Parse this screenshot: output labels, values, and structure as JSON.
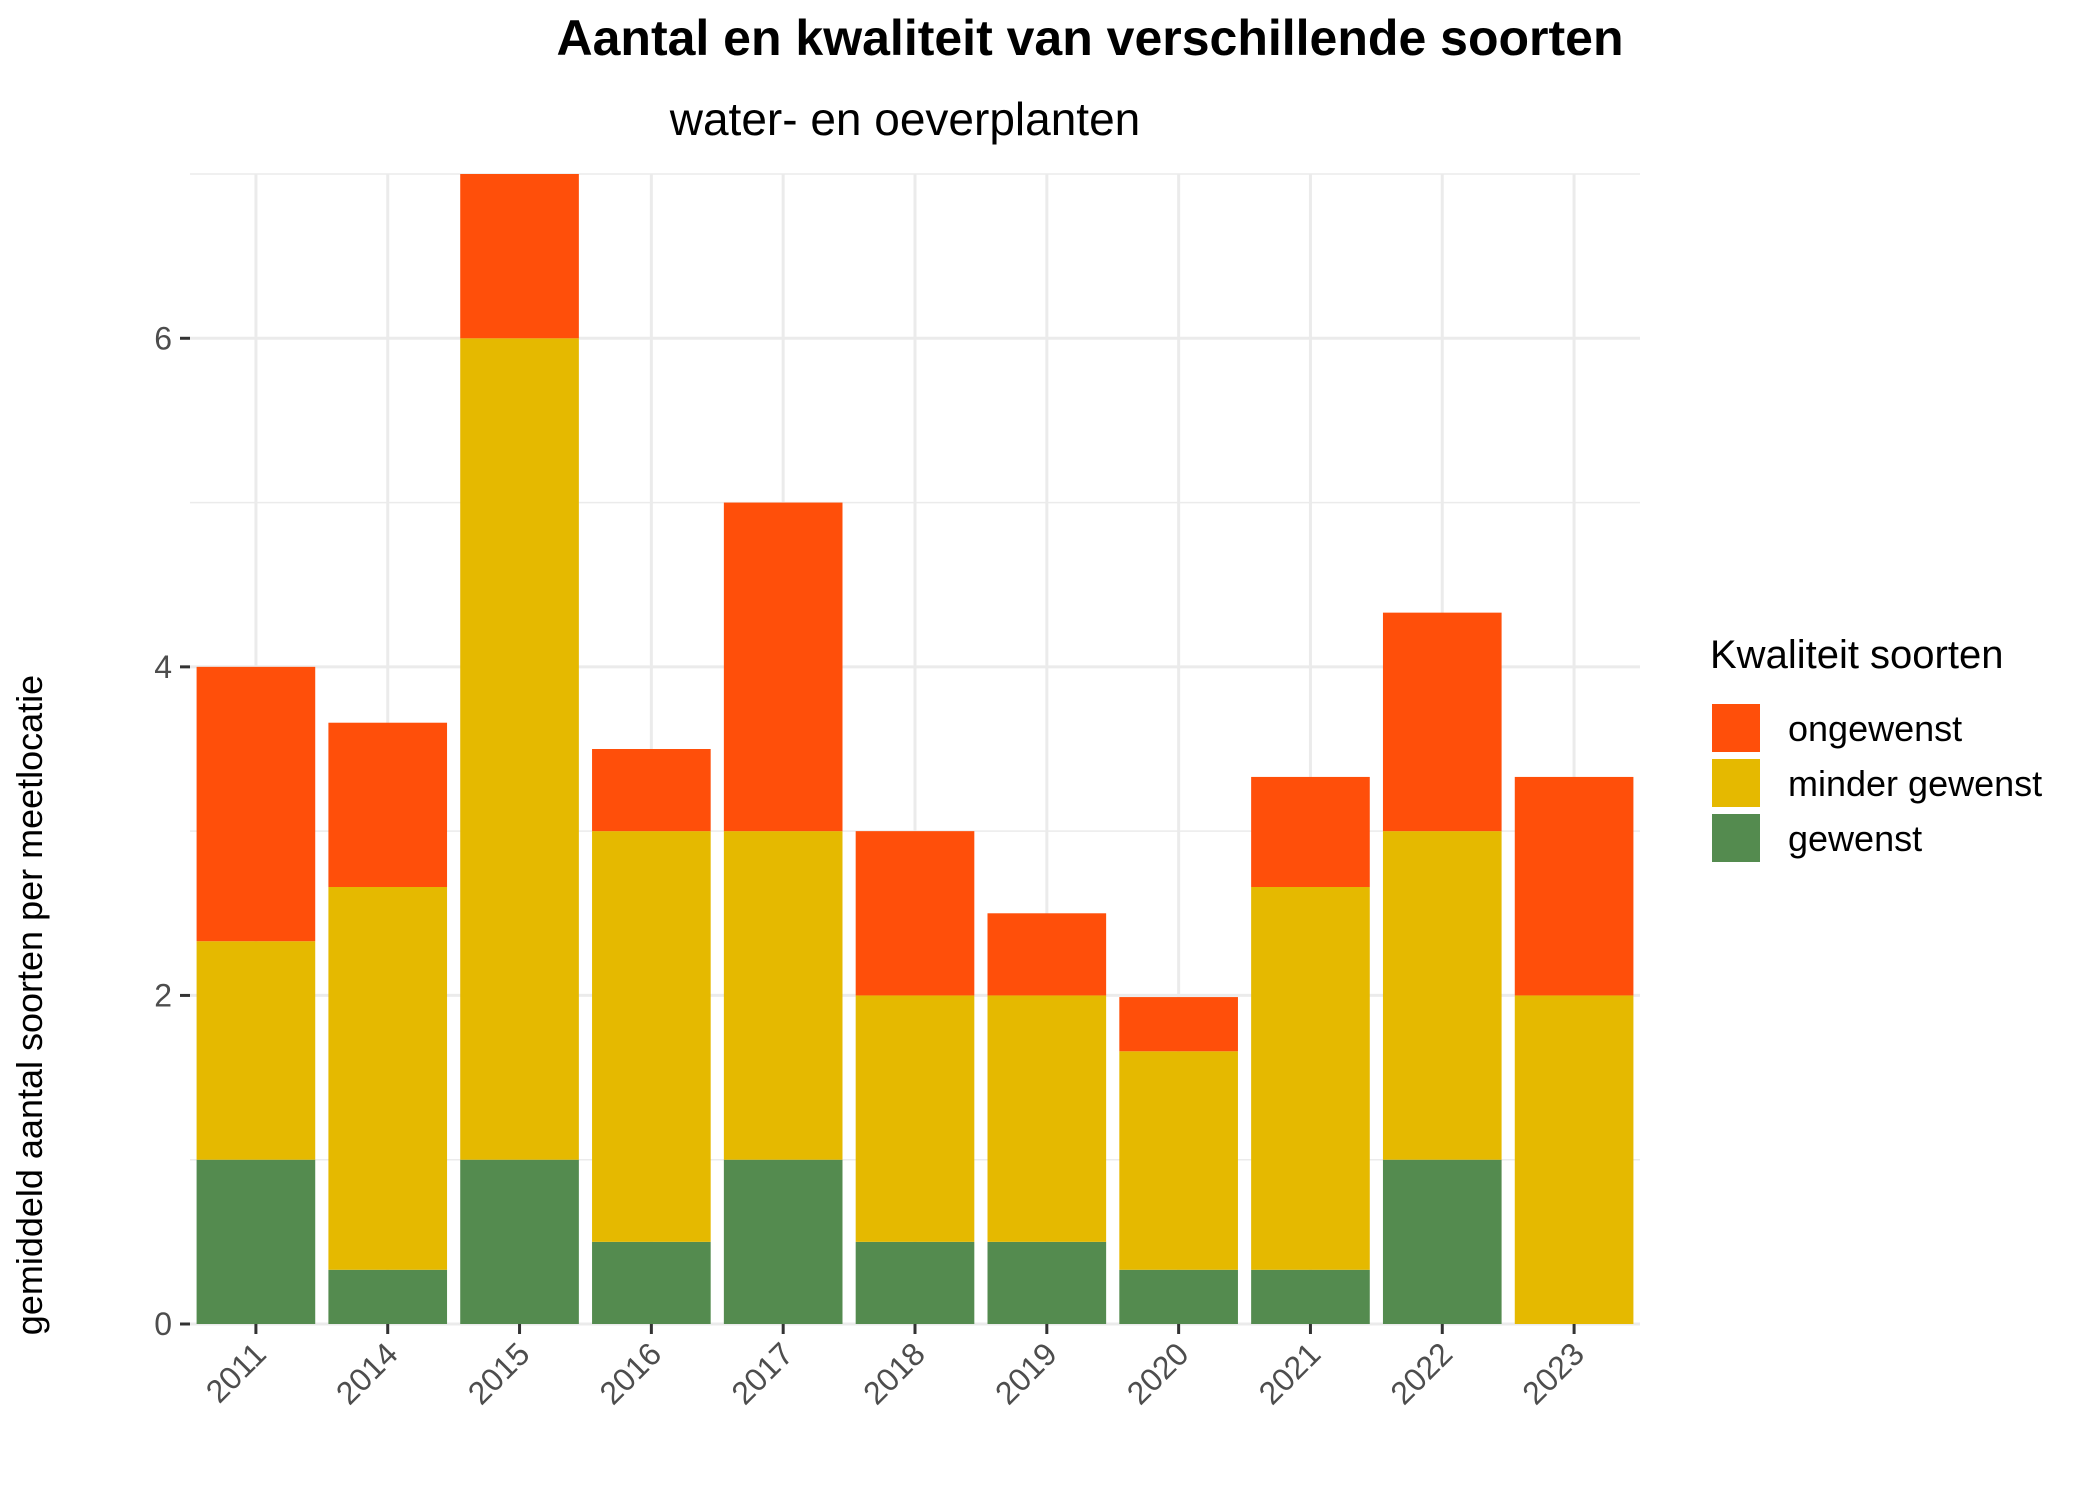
{
  "chart_data": {
    "type": "bar",
    "stacked": true,
    "title": "Aantal en kwaliteit van verschillende soorten",
    "subtitle": "water- en oeverplanten",
    "xlabel": "",
    "ylabel": "gemiddeld aantal soorten per meetlocatie",
    "ylim": [
      0,
      7
    ],
    "yticks": [
      0,
      2,
      4,
      6
    ],
    "grid": true,
    "legend": {
      "title": "Kwaliteit soorten",
      "position": "right"
    },
    "categories": [
      "2011",
      "2014",
      "2015",
      "2016",
      "2017",
      "2018",
      "2019",
      "2020",
      "2021",
      "2022",
      "2023"
    ],
    "series": [
      {
        "name": "gewenst",
        "color": "#548B4F",
        "values": [
          1,
          0.33,
          1,
          0.5,
          1,
          0.5,
          0.5,
          0.33,
          0.33,
          1,
          0
        ]
      },
      {
        "name": "minder gewenst",
        "color": "#E5B900",
        "values": [
          1.33,
          2.33,
          5,
          2.5,
          2,
          1.5,
          1.5,
          1.33,
          2.33,
          2,
          2
        ]
      },
      {
        "name": "ongewenst",
        "color": "#FF4F0A",
        "values": [
          1.67,
          1,
          1,
          0.5,
          2,
          1,
          0.5,
          0.33,
          0.67,
          1.33,
          1.33
        ]
      }
    ],
    "legend_order": [
      "ongewenst",
      "minder gewenst",
      "gewenst"
    ]
  }
}
